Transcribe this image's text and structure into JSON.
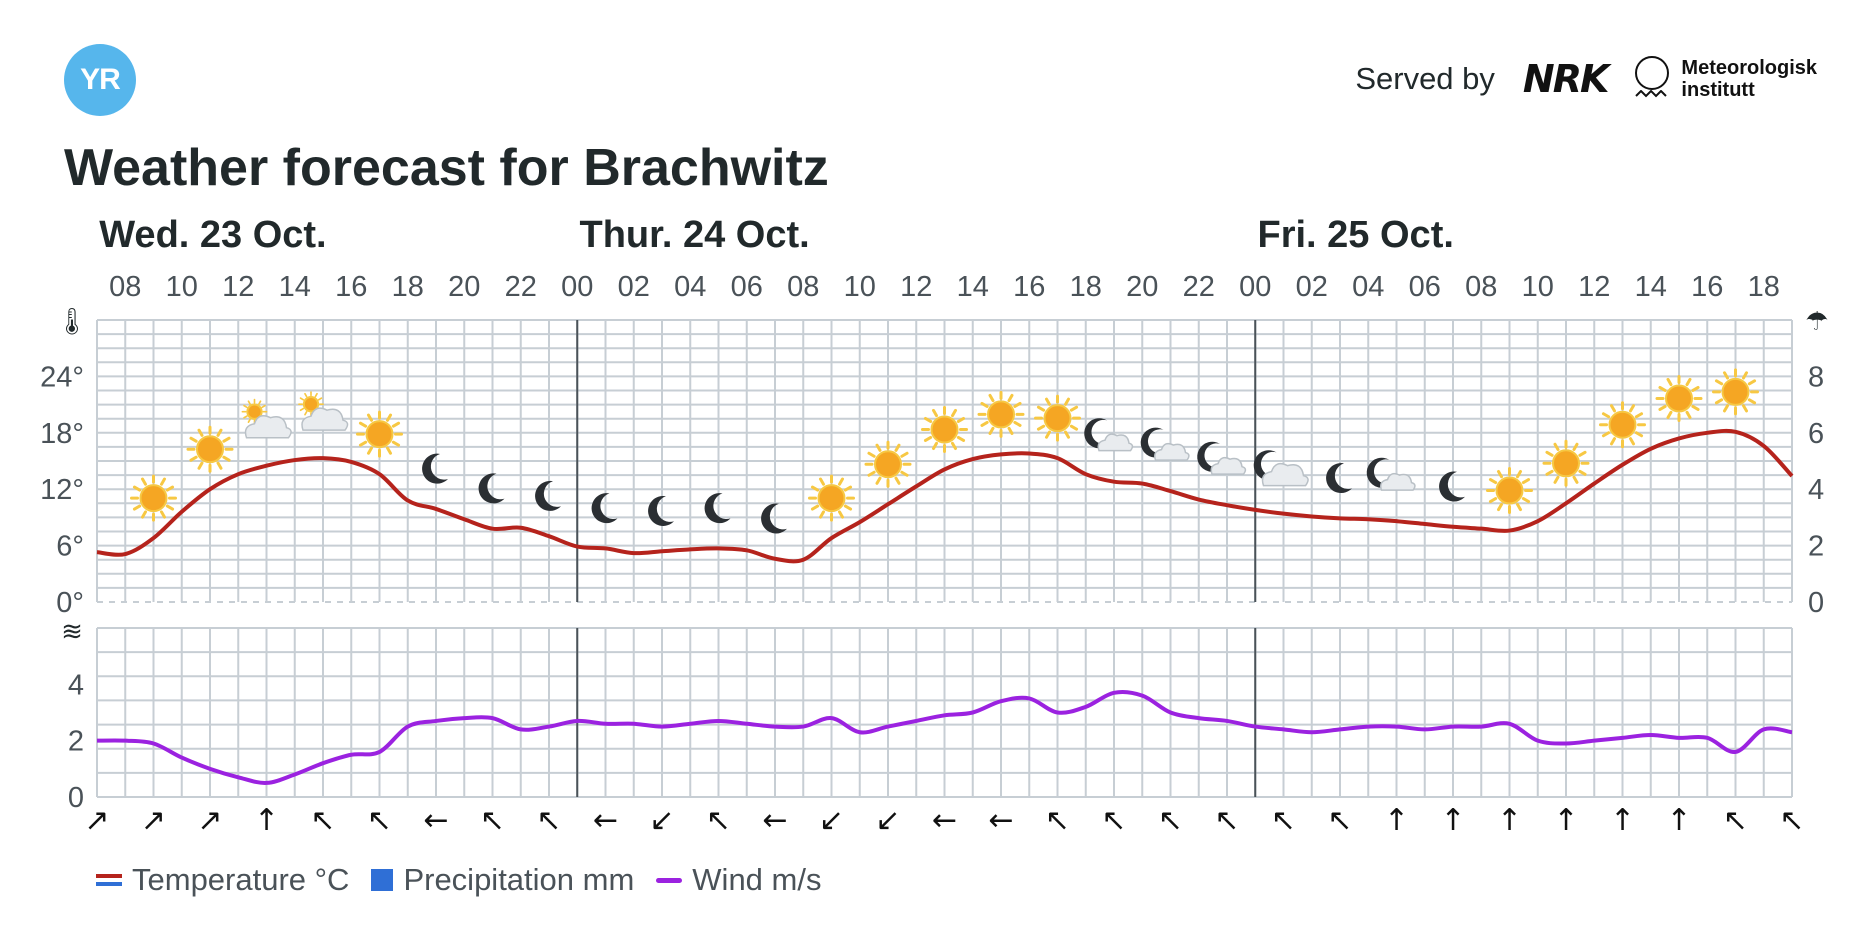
{
  "header": {
    "logo_text": "YR",
    "served_by": "Served by",
    "nrk_logo": "NRK",
    "met_logo": "Meteorologisk\ninstitutt"
  },
  "title": "Weather forecast for Brachwitz",
  "colors": {
    "temperature": "#b5231c",
    "wind": "#9b22e0",
    "grid": "#c7ced4",
    "day_separator": "#4a5258",
    "sun": "#f5a623",
    "moon": "#2b2f33"
  },
  "chart_data": [
    {
      "type": "line",
      "name": "temperature-panel",
      "x_ticks": [
        "08",
        "10",
        "12",
        "14",
        "16",
        "18",
        "20",
        "22",
        "00",
        "02",
        "04",
        "06",
        "08",
        "10",
        "12",
        "14",
        "16",
        "18",
        "20",
        "22",
        "00",
        "02",
        "04",
        "06",
        "08",
        "10",
        "12",
        "14",
        "16",
        "18"
      ],
      "day_labels": [
        {
          "label": "Wed. 23 Oct.",
          "hour": 8
        },
        {
          "label": "Thur. 24 Oct.",
          "hour": 25
        },
        {
          "label": "Fri. 25 Oct.",
          "hour": 49
        }
      ],
      "day_separators_hour": [
        24,
        48
      ],
      "hours_start": 7,
      "hours_end": 67,
      "left_axis": {
        "ticks": [
          "0°",
          "6°",
          "12°",
          "18°",
          "24°"
        ],
        "values": [
          0,
          6,
          12,
          18,
          24
        ],
        "range": [
          0,
          30
        ]
      },
      "right_axis": {
        "ticks": [
          "0",
          "2",
          "4",
          "6",
          "8"
        ],
        "values": [
          0,
          2,
          4,
          6,
          8
        ],
        "range": [
          0,
          10
        ]
      },
      "series": [
        {
          "name": "Temperature °C",
          "x": [
            7,
            8,
            9,
            10,
            11,
            12,
            13,
            14,
            15,
            16,
            17,
            18,
            19,
            20,
            21,
            22,
            23,
            24,
            25,
            26,
            27,
            28,
            29,
            30,
            31,
            32,
            33,
            34,
            35,
            36,
            37,
            38,
            39,
            40,
            41,
            42,
            43,
            44,
            45,
            46,
            47,
            48,
            49,
            50,
            51,
            52,
            53,
            54,
            55,
            56,
            57,
            58,
            59,
            60,
            61,
            62,
            63,
            64,
            65,
            66,
            67
          ],
          "values": [
            5.3,
            5.1,
            6.8,
            9.6,
            12.0,
            13.6,
            14.5,
            15.1,
            15.3,
            14.9,
            13.6,
            10.8,
            9.9,
            8.8,
            7.8,
            7.9,
            7.0,
            5.9,
            5.7,
            5.2,
            5.4,
            5.6,
            5.7,
            5.5,
            4.6,
            4.5,
            6.8,
            8.5,
            10.4,
            12.3,
            14.1,
            15.2,
            15.7,
            15.8,
            15.3,
            13.6,
            12.8,
            12.6,
            11.8,
            10.9,
            10.3,
            9.8,
            9.4,
            9.1,
            8.9,
            8.8,
            8.6,
            8.3,
            8.0,
            7.8,
            7.6,
            8.6,
            10.5,
            12.6,
            14.6,
            16.3,
            17.4,
            18.0,
            18.1,
            16.6,
            13.4
          ]
        }
      ],
      "weather_symbols": [
        {
          "hour": 9,
          "symbol": "sun"
        },
        {
          "hour": 11,
          "symbol": "sun"
        },
        {
          "hour": 13,
          "symbol": "partly-cloudy-day"
        },
        {
          "hour": 15,
          "symbol": "partly-cloudy-day"
        },
        {
          "hour": 17,
          "symbol": "sun"
        },
        {
          "hour": 19,
          "symbol": "moon"
        },
        {
          "hour": 21,
          "symbol": "moon"
        },
        {
          "hour": 23,
          "symbol": "moon"
        },
        {
          "hour": 25,
          "symbol": "moon"
        },
        {
          "hour": 27,
          "symbol": "moon"
        },
        {
          "hour": 29,
          "symbol": "moon"
        },
        {
          "hour": 31,
          "symbol": "moon"
        },
        {
          "hour": 33,
          "symbol": "sun"
        },
        {
          "hour": 35,
          "symbol": "sun"
        },
        {
          "hour": 37,
          "symbol": "sun"
        },
        {
          "hour": 39,
          "symbol": "sun"
        },
        {
          "hour": 41,
          "symbol": "sun"
        },
        {
          "hour": 43,
          "symbol": "partly-cloudy-night"
        },
        {
          "hour": 45,
          "symbol": "partly-cloudy-night"
        },
        {
          "hour": 47,
          "symbol": "partly-cloudy-night"
        },
        {
          "hour": 49,
          "symbol": "cloudy-night"
        },
        {
          "hour": 51,
          "symbol": "moon"
        },
        {
          "hour": 53,
          "symbol": "partly-cloudy-night"
        },
        {
          "hour": 55,
          "symbol": "moon"
        },
        {
          "hour": 57,
          "symbol": "sun"
        },
        {
          "hour": 59,
          "symbol": "sun"
        },
        {
          "hour": 61,
          "symbol": "sun"
        },
        {
          "hour": 63,
          "symbol": "sun"
        },
        {
          "hour": 65,
          "symbol": "sun"
        }
      ]
    },
    {
      "type": "line",
      "name": "wind-panel",
      "y_ticks": [
        "0",
        "2",
        "4"
      ],
      "y_values": [
        0,
        2,
        4
      ],
      "y_range": [
        0,
        6
      ],
      "series": [
        {
          "name": "Wind m/s",
          "x": [
            7,
            8,
            9,
            10,
            11,
            12,
            13,
            14,
            15,
            16,
            17,
            18,
            19,
            20,
            21,
            22,
            23,
            24,
            25,
            26,
            27,
            28,
            29,
            30,
            31,
            32,
            33,
            34,
            35,
            36,
            37,
            38,
            39,
            40,
            41,
            42,
            43,
            44,
            45,
            46,
            47,
            48,
            49,
            50,
            51,
            52,
            53,
            54,
            55,
            56,
            57,
            58,
            59,
            60,
            61,
            62,
            63,
            64,
            65,
            66,
            67
          ],
          "values": [
            2.0,
            2.0,
            1.9,
            1.4,
            1.0,
            0.7,
            0.5,
            0.8,
            1.2,
            1.5,
            1.6,
            2.5,
            2.7,
            2.8,
            2.8,
            2.4,
            2.5,
            2.7,
            2.6,
            2.6,
            2.5,
            2.6,
            2.7,
            2.6,
            2.5,
            2.5,
            2.8,
            2.3,
            2.5,
            2.7,
            2.9,
            3.0,
            3.4,
            3.5,
            3.0,
            3.2,
            3.7,
            3.6,
            3.0,
            2.8,
            2.7,
            2.5,
            2.4,
            2.3,
            2.4,
            2.5,
            2.5,
            2.4,
            2.5,
            2.5,
            2.6,
            2.0,
            1.9,
            2.0,
            2.1,
            2.2,
            2.1,
            2.1,
            1.6,
            2.4,
            2.3
          ]
        }
      ],
      "wind_directions": [
        {
          "hour": 7,
          "arrow": "↗"
        },
        {
          "hour": 9,
          "arrow": "↗"
        },
        {
          "hour": 11,
          "arrow": "↗"
        },
        {
          "hour": 13,
          "arrow": "↑"
        },
        {
          "hour": 15,
          "arrow": "↖"
        },
        {
          "hour": 17,
          "arrow": "↖"
        },
        {
          "hour": 19,
          "arrow": "←"
        },
        {
          "hour": 21,
          "arrow": "↖"
        },
        {
          "hour": 23,
          "arrow": "↖"
        },
        {
          "hour": 25,
          "arrow": "←"
        },
        {
          "hour": 27,
          "arrow": "↙"
        },
        {
          "hour": 29,
          "arrow": "↖"
        },
        {
          "hour": 31,
          "arrow": "←"
        },
        {
          "hour": 33,
          "arrow": "↙"
        },
        {
          "hour": 35,
          "arrow": "↙"
        },
        {
          "hour": 37,
          "arrow": "←"
        },
        {
          "hour": 39,
          "arrow": "←"
        },
        {
          "hour": 41,
          "arrow": "↖"
        },
        {
          "hour": 43,
          "arrow": "↖"
        },
        {
          "hour": 45,
          "arrow": "↖"
        },
        {
          "hour": 47,
          "arrow": "↖"
        },
        {
          "hour": 49,
          "arrow": "↖"
        },
        {
          "hour": 51,
          "arrow": "↖"
        },
        {
          "hour": 53,
          "arrow": "↑"
        },
        {
          "hour": 55,
          "arrow": "↑"
        },
        {
          "hour": 57,
          "arrow": "↑"
        },
        {
          "hour": 59,
          "arrow": "↑"
        },
        {
          "hour": 61,
          "arrow": "↑"
        },
        {
          "hour": 63,
          "arrow": "↑"
        },
        {
          "hour": 65,
          "arrow": "↖"
        },
        {
          "hour": 67,
          "arrow": "↖"
        }
      ]
    }
  ],
  "legend": {
    "temperature": "Temperature °C",
    "precipitation": "Precipitation mm",
    "wind": "Wind m/s"
  }
}
